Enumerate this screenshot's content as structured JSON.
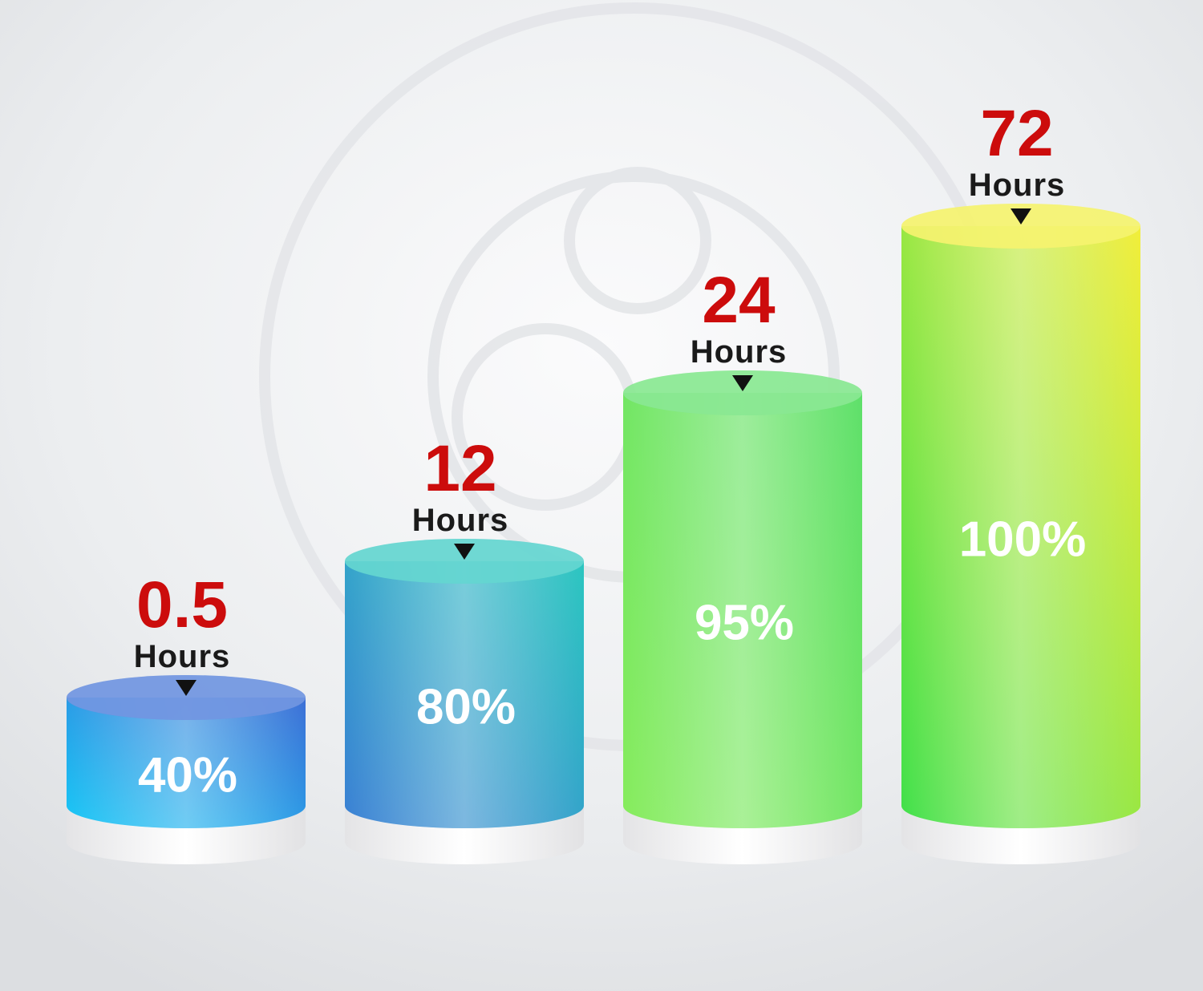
{
  "chart_data": {
    "type": "bar",
    "style": "3d-cylinder",
    "categories": [
      "0.5",
      "12",
      "24",
      "72"
    ],
    "category_unit": "Hours",
    "values": [
      40,
      80,
      95,
      100
    ],
    "value_labels": [
      "40%",
      "80%",
      "95%",
      "100%"
    ],
    "colors": [
      [
        "#17c8f6",
        "#3d6fd6"
      ],
      [
        "#3a7fd4",
        "#2bc6c0"
      ],
      [
        "#86ec5c",
        "#5ee06a"
      ],
      [
        "#3fe04a",
        "#f2ee3a"
      ]
    ],
    "number_color": "#cc0c0c",
    "grid": false,
    "legend": "none"
  }
}
